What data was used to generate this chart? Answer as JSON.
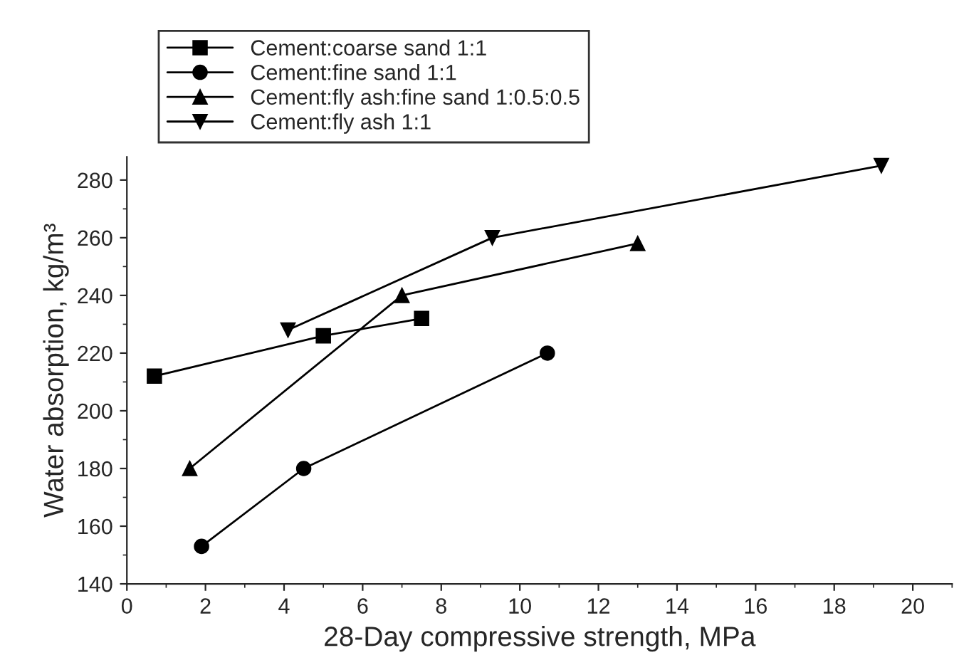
{
  "chart_data": {
    "type": "line",
    "xlabel": "28-Day compressive strength, MPa",
    "ylabel": "Water absorption, kg/m³",
    "xlim": [
      0,
      21
    ],
    "xticks": [
      0,
      2,
      4,
      6,
      8,
      10,
      12,
      14,
      16,
      18,
      20
    ],
    "ylim": [
      140,
      288
    ],
    "yticks": [
      140,
      160,
      180,
      200,
      220,
      240,
      260,
      280
    ],
    "legend": "top",
    "grid": false,
    "line_style": "solid",
    "series": [
      {
        "name": "Cement:coarse sand 1:1",
        "color": "#000000",
        "marker": "square",
        "x": [
          0.7,
          5,
          7.5
        ],
        "values": [
          212,
          226,
          232
        ]
      },
      {
        "name": "Cement:fine sand 1:1",
        "color": "#000000",
        "marker": "circle",
        "x": [
          1.9,
          4.5,
          10.7
        ],
        "values": [
          153,
          180,
          220
        ]
      },
      {
        "name": "Cement:fly ash:fine sand 1:0.5:0.5",
        "color": "#000000",
        "marker": "triangle",
        "x": [
          1.6,
          7,
          13
        ],
        "values": [
          180,
          240,
          258
        ]
      },
      {
        "name": "Cement:fly ash 1:1",
        "color": "#000000",
        "marker": "triangle_down",
        "x": [
          4.1,
          9.3,
          19.2
        ],
        "values": [
          228,
          260,
          285
        ]
      }
    ]
  }
}
